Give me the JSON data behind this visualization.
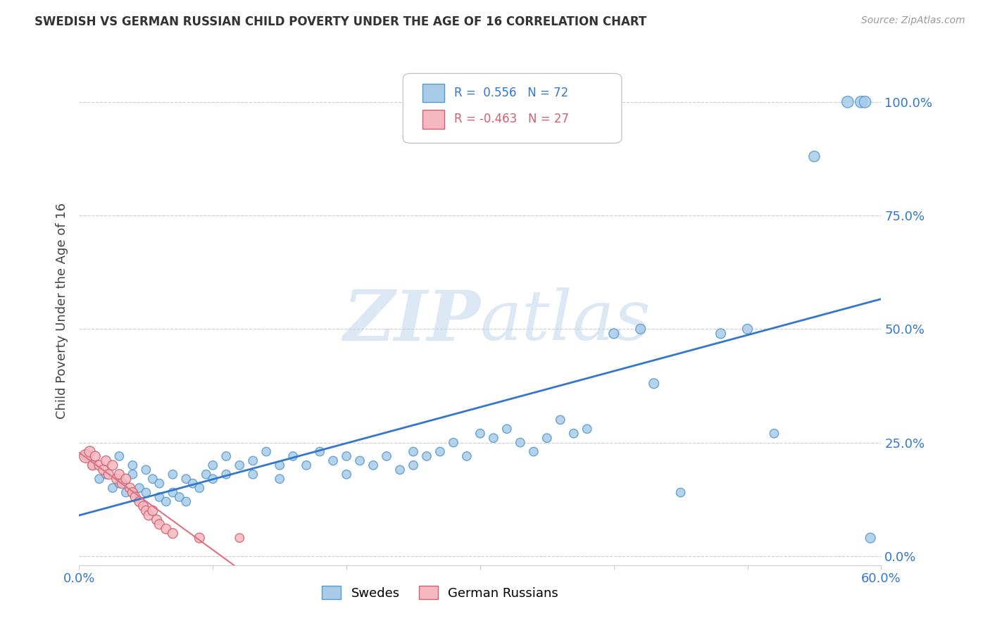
{
  "title": "SWEDISH VS GERMAN RUSSIAN CHILD POVERTY UNDER THE AGE OF 16 CORRELATION CHART",
  "source": "Source: ZipAtlas.com",
  "xlabel": "",
  "ylabel": "Child Poverty Under the Age of 16",
  "xlim": [
    0.0,
    0.6
  ],
  "ylim": [
    -0.02,
    1.1
  ],
  "yticks": [
    0.0,
    0.25,
    0.5,
    0.75,
    1.0
  ],
  "ytick_labels": [
    "0.0%",
    "25.0%",
    "50.0%",
    "75.0%",
    "100.0%"
  ],
  "xtick_positions": [
    0.0,
    0.1,
    0.2,
    0.3,
    0.4,
    0.5,
    0.6
  ],
  "xtick_labels": [
    "0.0%",
    "",
    "",
    "",
    "",
    "",
    "60.0%"
  ],
  "swedes_R": 0.556,
  "swedes_N": 72,
  "german_russians_R": -0.463,
  "german_russians_N": 27,
  "swede_color": "#A8CCE8",
  "swede_edge_color": "#5599CC",
  "german_russian_color": "#F5B8C0",
  "german_russian_edge_color": "#D06070",
  "trend_swede_color": "#3377CC",
  "trend_german_russian_color": "#E07080",
  "background_color": "#FFFFFF",
  "watermark_color": "#DDE8F5",
  "swedes_x": [
    0.005,
    0.01,
    0.015,
    0.02,
    0.025,
    0.03,
    0.03,
    0.035,
    0.04,
    0.04,
    0.045,
    0.05,
    0.05,
    0.055,
    0.06,
    0.06,
    0.065,
    0.07,
    0.07,
    0.075,
    0.08,
    0.08,
    0.085,
    0.09,
    0.095,
    0.1,
    0.1,
    0.11,
    0.11,
    0.12,
    0.13,
    0.13,
    0.14,
    0.15,
    0.15,
    0.16,
    0.17,
    0.18,
    0.19,
    0.2,
    0.2,
    0.21,
    0.22,
    0.23,
    0.24,
    0.25,
    0.25,
    0.26,
    0.27,
    0.28,
    0.29,
    0.3,
    0.31,
    0.32,
    0.33,
    0.34,
    0.35,
    0.36,
    0.37,
    0.38,
    0.4,
    0.42,
    0.43,
    0.45,
    0.48,
    0.5,
    0.52,
    0.55,
    0.575,
    0.585,
    0.588,
    0.592
  ],
  "swedes_y": [
    0.22,
    0.2,
    0.17,
    0.18,
    0.15,
    0.22,
    0.16,
    0.14,
    0.18,
    0.2,
    0.15,
    0.19,
    0.14,
    0.17,
    0.13,
    0.16,
    0.12,
    0.18,
    0.14,
    0.13,
    0.17,
    0.12,
    0.16,
    0.15,
    0.18,
    0.2,
    0.17,
    0.22,
    0.18,
    0.2,
    0.21,
    0.18,
    0.23,
    0.2,
    0.17,
    0.22,
    0.2,
    0.23,
    0.21,
    0.22,
    0.18,
    0.21,
    0.2,
    0.22,
    0.19,
    0.23,
    0.2,
    0.22,
    0.23,
    0.25,
    0.22,
    0.27,
    0.26,
    0.28,
    0.25,
    0.23,
    0.26,
    0.3,
    0.27,
    0.28,
    0.49,
    0.5,
    0.38,
    0.14,
    0.49,
    0.5,
    0.27,
    0.88,
    1.0,
    1.0,
    1.0,
    0.04
  ],
  "german_russians_x": [
    0.005,
    0.008,
    0.01,
    0.012,
    0.015,
    0.018,
    0.02,
    0.022,
    0.025,
    0.028,
    0.03,
    0.032,
    0.035,
    0.038,
    0.04,
    0.042,
    0.045,
    0.048,
    0.05,
    0.052,
    0.055,
    0.058,
    0.06,
    0.065,
    0.07,
    0.09,
    0.12
  ],
  "german_russians_y": [
    0.22,
    0.23,
    0.2,
    0.22,
    0.2,
    0.19,
    0.21,
    0.18,
    0.2,
    0.17,
    0.18,
    0.16,
    0.17,
    0.15,
    0.14,
    0.13,
    0.12,
    0.11,
    0.1,
    0.09,
    0.1,
    0.08,
    0.07,
    0.06,
    0.05,
    0.04,
    0.04
  ],
  "swedes_sizes": [
    80,
    80,
    80,
    80,
    80,
    80,
    80,
    80,
    80,
    80,
    80,
    80,
    80,
    80,
    80,
    80,
    80,
    80,
    80,
    80,
    80,
    80,
    80,
    80,
    80,
    80,
    80,
    80,
    80,
    80,
    80,
    80,
    80,
    80,
    80,
    80,
    80,
    80,
    80,
    80,
    80,
    80,
    80,
    80,
    80,
    80,
    80,
    80,
    80,
    80,
    80,
    80,
    80,
    80,
    80,
    80,
    80,
    80,
    80,
    80,
    100,
    100,
    100,
    80,
    100,
    100,
    80,
    120,
    140,
    140,
    140,
    100
  ],
  "german_russians_sizes": [
    180,
    120,
    100,
    100,
    100,
    100,
    100,
    100,
    100,
    100,
    100,
    100,
    100,
    100,
    100,
    100,
    100,
    100,
    100,
    100,
    100,
    100,
    100,
    100,
    100,
    100,
    80
  ],
  "legend_swede_label": "Swedes",
  "legend_german_russian_label": "German Russians"
}
